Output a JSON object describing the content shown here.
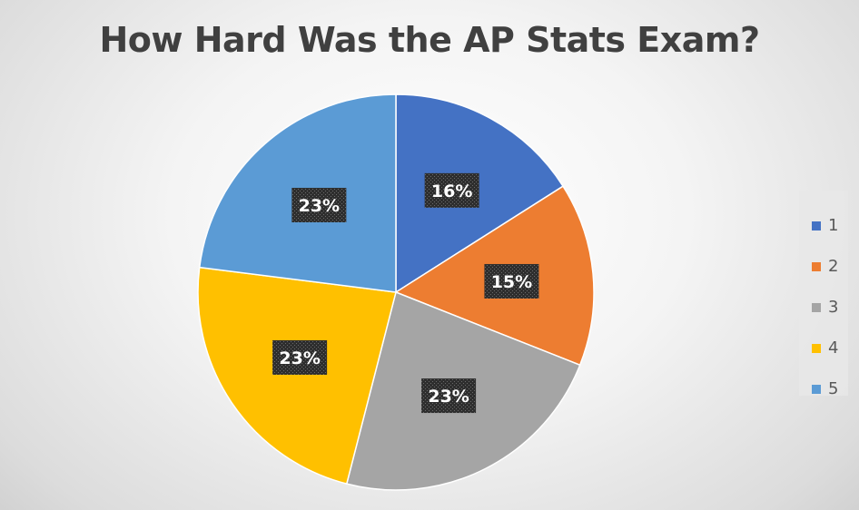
{
  "chart_data": {
    "type": "pie",
    "title": "How Hard Was the AP Stats Exam?",
    "categories": [
      "1",
      "2",
      "3",
      "4",
      "5"
    ],
    "values": [
      16,
      15,
      23,
      23,
      23
    ],
    "data_labels": [
      "16%",
      "15%",
      "23%",
      "23%",
      "23%"
    ],
    "colors": [
      "#4472C4",
      "#ED7D31",
      "#A5A5A5",
      "#FFC000",
      "#5B9BD5"
    ],
    "start_angle_deg": 0,
    "direction": "clockwise",
    "legend_position": "right",
    "label_style": "dark patterned boxes with white bold text"
  }
}
